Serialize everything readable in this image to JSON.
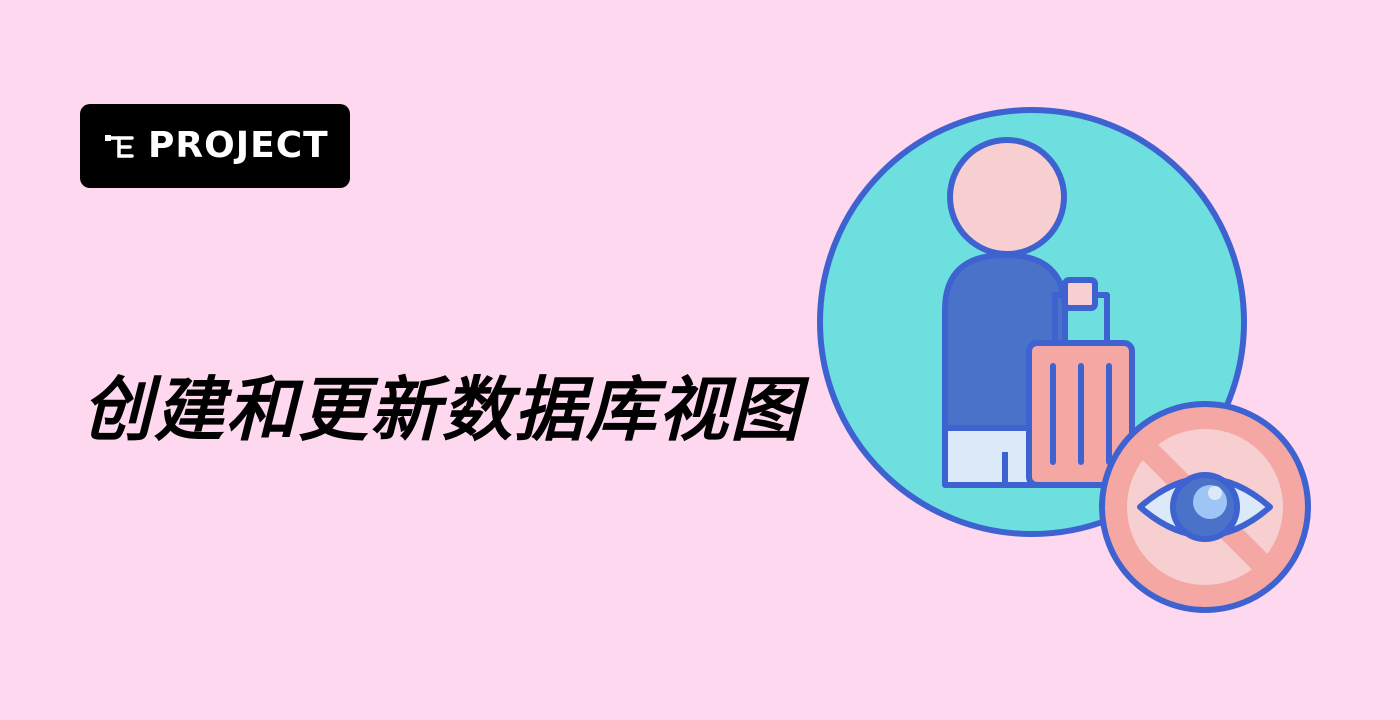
{
  "badge": {
    "label": "PROJECT",
    "icon": "labex-logo-icon"
  },
  "title": "创建和更新数据库视图",
  "illustration": {
    "name": "traveler-with-luggage-hidden-view",
    "colors": {
      "background": "#fdd8ee",
      "circle_fill": "#6ddfde",
      "outline": "#3f62d1",
      "head": "#f7cfd0",
      "body": "#4a72c9",
      "pants": "#dbe9f9",
      "luggage": "#f5a7a3",
      "no_sign_fill": "#f7cfd0",
      "no_sign_ring": "#f5a7a3",
      "eye_iris": "#4a72c9",
      "eye_pupil": "#9ec5f6"
    }
  }
}
